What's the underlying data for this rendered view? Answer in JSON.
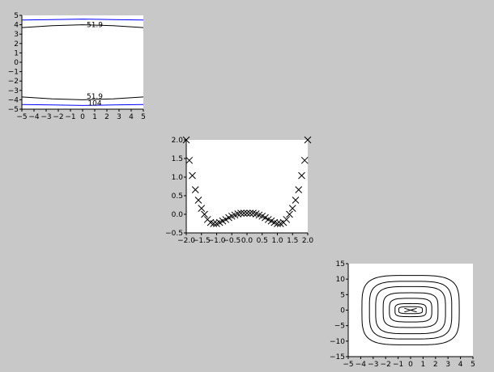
{
  "chart_data": [
    {
      "type": "line",
      "title": "",
      "xlabel": "",
      "ylabel": "",
      "xlim": [
        -5,
        5
      ],
      "ylim": [
        -5,
        5
      ],
      "xticks": [
        -5,
        -4,
        -3,
        -2,
        -1,
        0,
        1,
        2,
        3,
        4,
        5
      ],
      "yticks": [
        -5,
        -4,
        -3,
        -2,
        -1,
        0,
        1,
        2,
        3,
        4,
        5
      ],
      "grid": false,
      "series": [
        {
          "name": "",
          "color": "#0000ff",
          "x": [
            -5,
            -2.5,
            0,
            2.5,
            5
          ],
          "y": [
            4.5,
            4.55,
            4.6,
            4.55,
            4.5
          ]
        },
        {
          "name": "",
          "color": "#000000",
          "x": [
            -5,
            -2.5,
            0,
            2.5,
            5
          ],
          "y": [
            3.7,
            3.9,
            4.0,
            3.9,
            3.7
          ]
        },
        {
          "name": "",
          "color": "#000000",
          "x": [
            -5,
            -2.5,
            0,
            2.5,
            5
          ],
          "y": [
            -3.7,
            -3.9,
            -4.0,
            -3.9,
            -3.7
          ]
        },
        {
          "name": "",
          "color": "#0000ff",
          "x": [
            -5,
            -2.5,
            0,
            2.5,
            5
          ],
          "y": [
            -4.5,
            -4.55,
            -4.6,
            -4.55,
            -4.5
          ]
        }
      ],
      "annotations": [
        {
          "text": "51.9",
          "x": 1.0,
          "y": 4.0
        },
        {
          "text": "51.9",
          "x": 1.0,
          "y": -3.6
        },
        {
          "text": "104",
          "x": 1.0,
          "y": -4.35
        }
      ]
    },
    {
      "type": "scatter",
      "title": "",
      "xlabel": "",
      "ylabel": "",
      "xlim": [
        -2.0,
        2.0
      ],
      "ylim": [
        -0.5,
        2.0
      ],
      "xticks": [
        "-2.0",
        "-1.5",
        "-1.0",
        "-0.5",
        "0.0",
        "0.5",
        "1.0",
        "1.5",
        "2.0"
      ],
      "yticks": [
        "-0.5",
        "0.0",
        "0.5",
        "1.0",
        "1.5",
        "2.0"
      ],
      "grid": false,
      "marker": "x",
      "x": [
        -2.0,
        -1.9,
        -1.8,
        -1.7,
        -1.6,
        -1.5,
        -1.4,
        -1.3,
        -1.2,
        -1.1,
        -1.0,
        -0.9,
        -0.8,
        -0.7,
        -0.6,
        -0.5,
        -0.4,
        -0.3,
        -0.2,
        -0.1,
        0.0,
        0.1,
        0.2,
        0.3,
        0.4,
        0.5,
        0.6,
        0.7,
        0.8,
        0.9,
        1.0,
        1.1,
        1.2,
        1.3,
        1.4,
        1.5,
        1.6,
        1.7,
        1.8,
        1.9,
        2.0
      ],
      "y": [
        2.0,
        1.45,
        1.04,
        0.66,
        0.38,
        0.16,
        0.0,
        -0.14,
        -0.22,
        -0.25,
        -0.25,
        -0.22,
        -0.18,
        -0.14,
        -0.09,
        -0.05,
        -0.02,
        0.01,
        0.03,
        0.03,
        0.03,
        0.03,
        0.03,
        0.01,
        -0.02,
        -0.05,
        -0.09,
        -0.14,
        -0.18,
        -0.22,
        -0.25,
        -0.25,
        -0.22,
        -0.14,
        0.0,
        0.16,
        0.38,
        0.66,
        1.04,
        1.45,
        2.0
      ]
    },
    {
      "type": "contour",
      "title": "",
      "xlabel": "",
      "ylabel": "",
      "xlim": [
        -5,
        5
      ],
      "ylim": [
        -15,
        15
      ],
      "xticks": [
        -5,
        -4,
        -3,
        -2,
        -1,
        0,
        1,
        2,
        3,
        4,
        5
      ],
      "yticks": [
        -15,
        -10,
        -5,
        0,
        5,
        10,
        15
      ],
      "grid": false,
      "levels": [
        {
          "a": 3.9,
          "b": 11.2
        },
        {
          "a": 3.3,
          "b": 9.3
        },
        {
          "a": 2.8,
          "b": 7.6
        },
        {
          "a": 2.2,
          "b": 5.6
        },
        {
          "a": 1.7,
          "b": 3.8
        },
        {
          "a": 1.25,
          "b": 2.1
        },
        {
          "a": 0.95,
          "b": 1.1
        }
      ]
    }
  ]
}
